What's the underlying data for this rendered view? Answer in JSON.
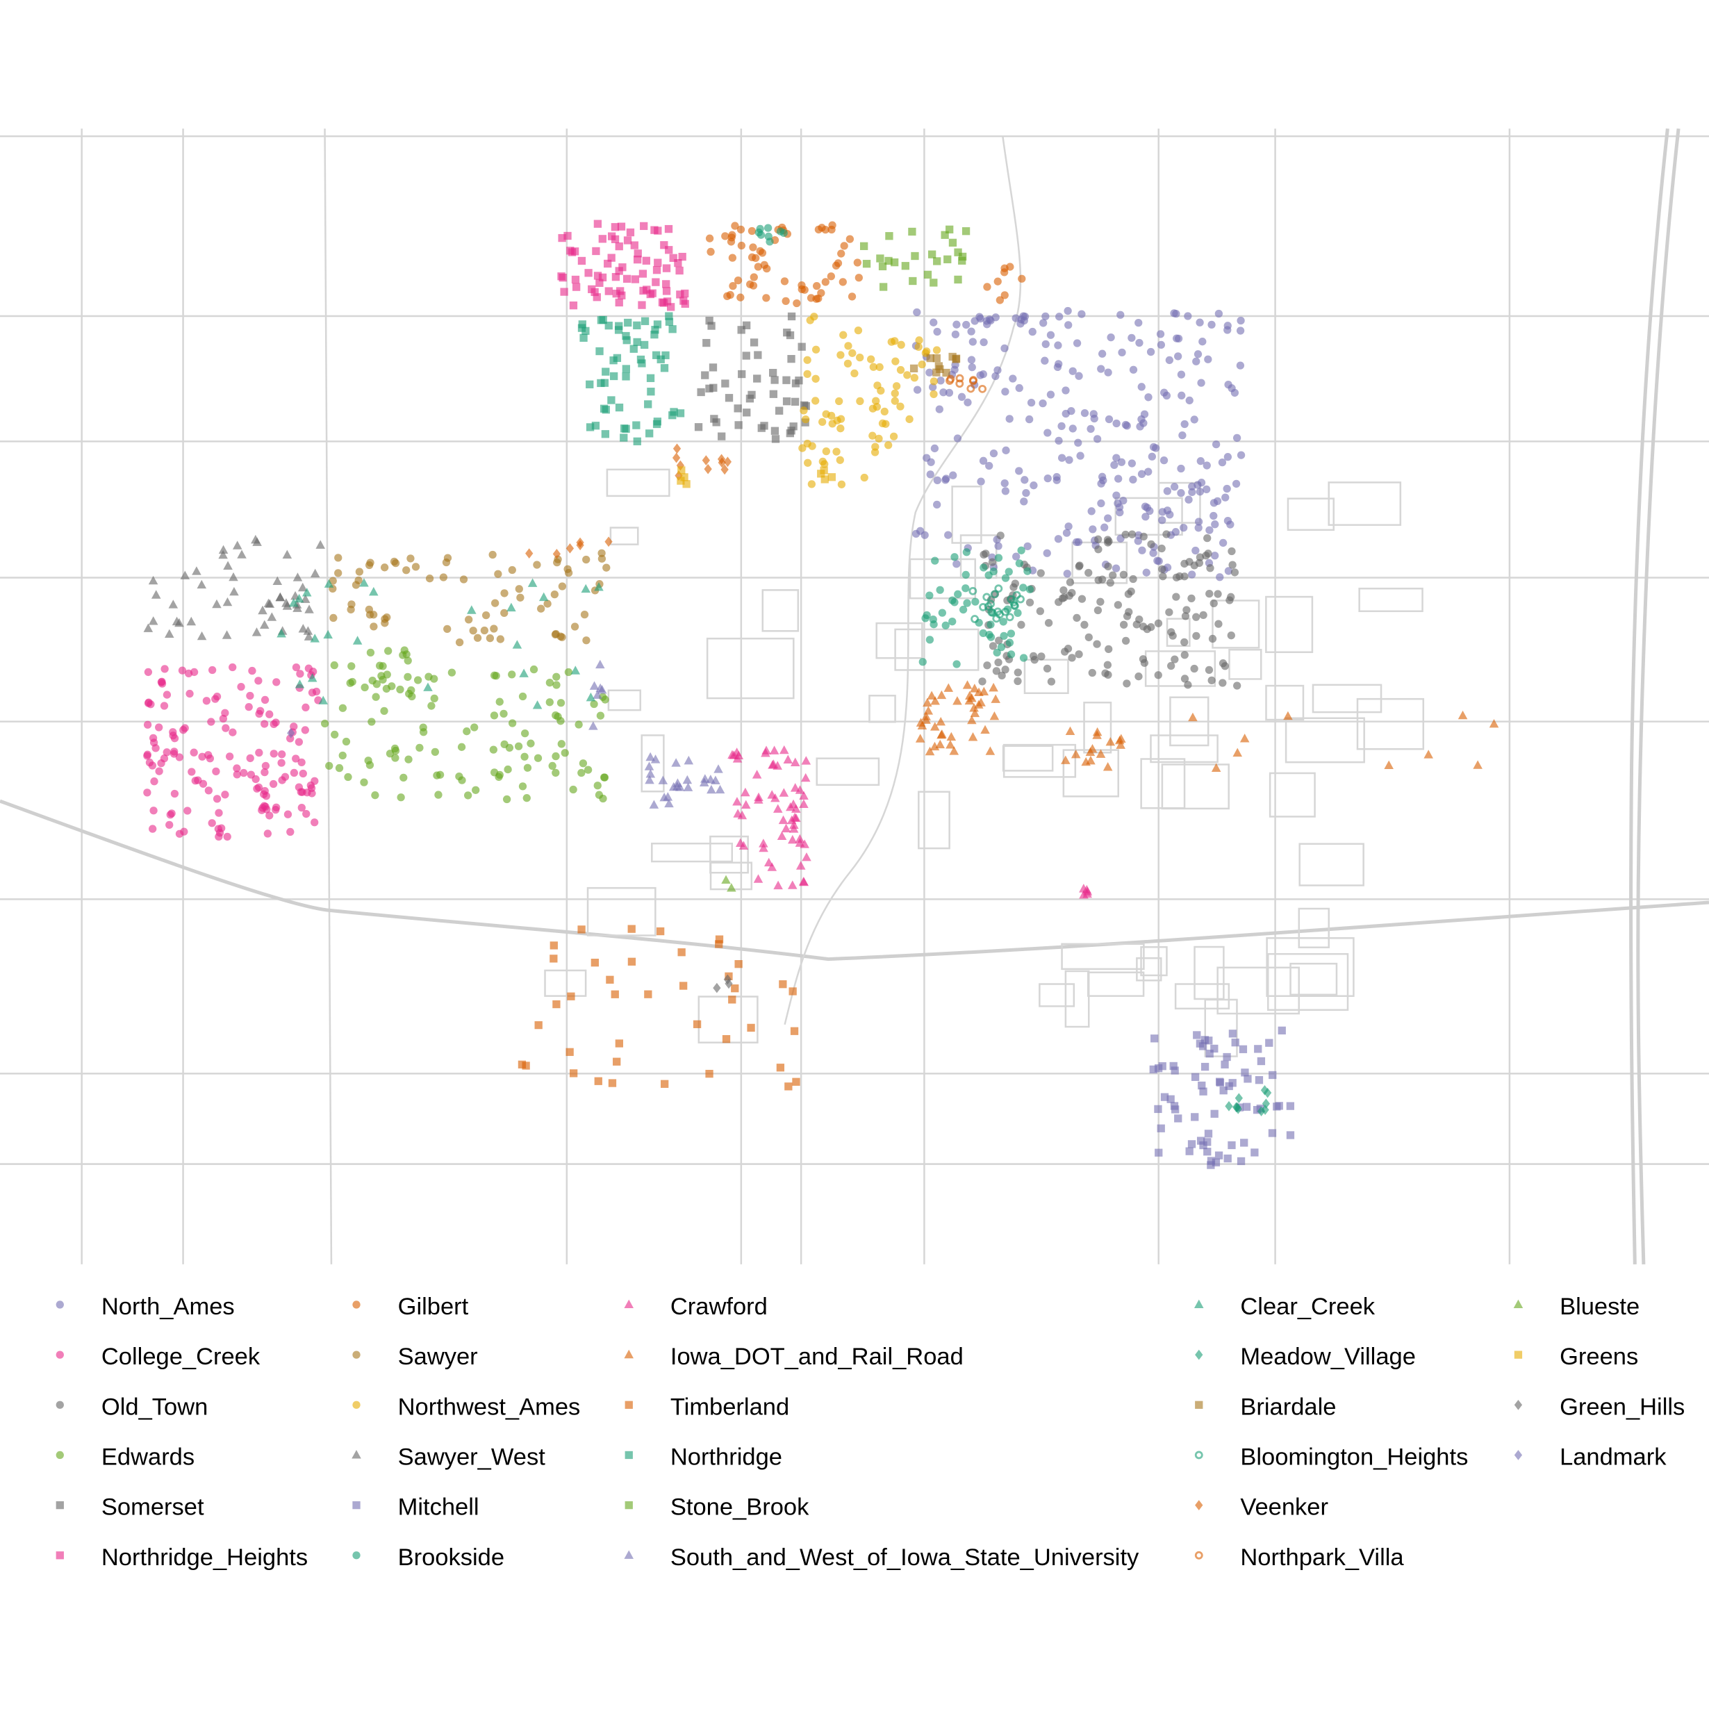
{
  "map": {
    "point_opacity": 0.6,
    "road_color": "#d6d6d6"
  },
  "legend": {
    "items": [
      {
        "label": "North_Ames",
        "color": "#7570B3",
        "shape": "circle"
      },
      {
        "label": "College_Creek",
        "color": "#E7298A",
        "shape": "circle"
      },
      {
        "label": "Old_Town",
        "color": "#666666",
        "shape": "circle"
      },
      {
        "label": "Edwards",
        "color": "#66A61E",
        "shape": "circle"
      },
      {
        "label": "Somerset",
        "color": "#666666",
        "shape": "square"
      },
      {
        "label": "Northridge_Heights",
        "color": "#E7298A",
        "shape": "square"
      },
      {
        "label": "Gilbert",
        "color": "#D95F02",
        "shape": "circle"
      },
      {
        "label": "Sawyer",
        "color": "#A6761D",
        "shape": "circle"
      },
      {
        "label": "Northwest_Ames",
        "color": "#E6AB02",
        "shape": "circle"
      },
      {
        "label": "Sawyer_West",
        "color": "#666666",
        "shape": "triangle"
      },
      {
        "label": "Mitchell",
        "color": "#7570B3",
        "shape": "square"
      },
      {
        "label": "Brookside",
        "color": "#1B9E77",
        "shape": "circle"
      },
      {
        "label": "Crawford",
        "color": "#E7298A",
        "shape": "triangle"
      },
      {
        "label": "Iowa_DOT_and_Rail_Road",
        "color": "#D95F02",
        "shape": "triangle"
      },
      {
        "label": "Timberland",
        "color": "#D95F02",
        "shape": "square"
      },
      {
        "label": "Northridge",
        "color": "#1B9E77",
        "shape": "square"
      },
      {
        "label": "Stone_Brook",
        "color": "#66A61E",
        "shape": "square"
      },
      {
        "label": "South_and_West_of_Iowa_State_University",
        "color": "#7570B3",
        "shape": "triangle"
      },
      {
        "label": "Clear_Creek",
        "color": "#1B9E77",
        "shape": "triangle"
      },
      {
        "label": "Meadow_Village",
        "color": "#1B9E77",
        "shape": "diamond"
      },
      {
        "label": "Briardale",
        "color": "#A6761D",
        "shape": "square"
      },
      {
        "label": "Bloomington_Heights",
        "color": "#1B9E77",
        "shape": "open-circle"
      },
      {
        "label": "Veenker",
        "color": "#D95F02",
        "shape": "diamond"
      },
      {
        "label": "Northpark_Villa",
        "color": "#D95F02",
        "shape": "open-circle"
      },
      {
        "label": "Blueste",
        "color": "#66A61E",
        "shape": "triangle"
      },
      {
        "label": "Greens",
        "color": "#E6AB02",
        "shape": "square"
      },
      {
        "label": "Green_Hills",
        "color": "#666666",
        "shape": "diamond"
      },
      {
        "label": "Landmark",
        "color": "#7570B3",
        "shape": "diamond"
      }
    ]
  }
}
